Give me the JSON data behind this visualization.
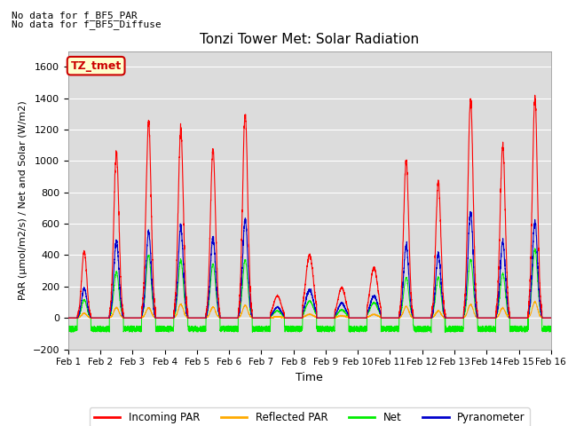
{
  "title": "Tonzi Tower Met: Solar Radiation",
  "xlabel": "Time",
  "ylabel": "PAR (μmol/m2/s) / Net and Solar (W/m2)",
  "ylim": [
    -200,
    1700
  ],
  "yticks": [
    -200,
    0,
    200,
    400,
    600,
    800,
    1000,
    1200,
    1400,
    1600
  ],
  "text_top_left_line1": "No data for f_BF5_PAR",
  "text_top_left_line2": "No data for f_BF5_Diffuse",
  "annotation_box": "TZ_tmet",
  "annotation_box_color": "#cc0000",
  "annotation_box_bg": "#ffffcc",
  "colors": {
    "incoming_par": "#ff0000",
    "reflected_par": "#ffaa00",
    "net": "#00ee00",
    "pyranometer": "#0000cc"
  },
  "legend_labels": [
    "Incoming PAR",
    "Reflected PAR",
    "Net",
    "Pyranometer"
  ],
  "background_color": "#dcdcdc",
  "n_days": 15,
  "pts_per_day": 288,
  "x_tick_labels": [
    "Feb 1",
    "Feb 2",
    "Feb 3",
    "Feb 4",
    "Feb 5",
    "Feb 6",
    "Feb 7",
    "Feb 8",
    "Feb 9",
    "Feb 10",
    "Feb 11",
    "Feb 12",
    "Feb 13",
    "Feb 14",
    "Feb 15",
    "Feb 16"
  ]
}
